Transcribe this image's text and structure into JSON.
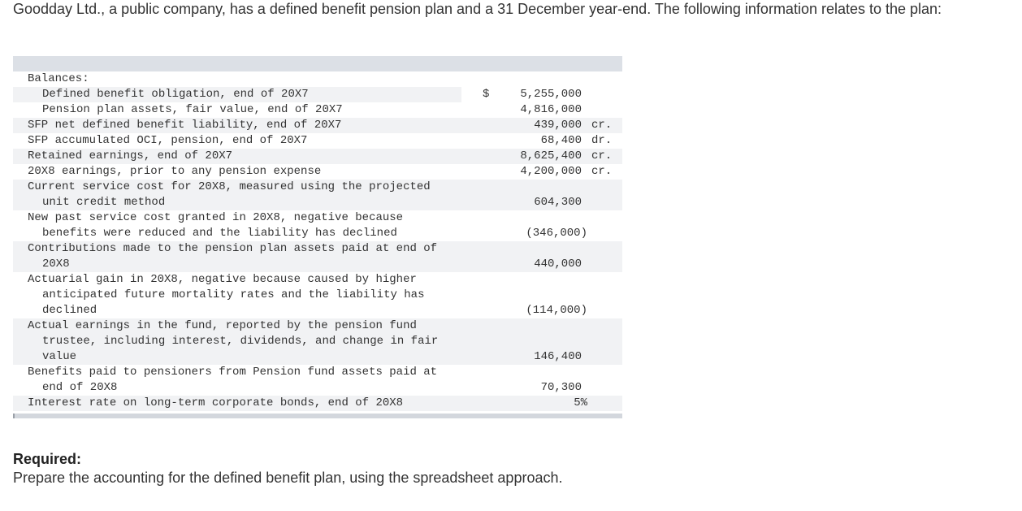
{
  "intro": "Goodday Ltd., a public company, has a defined benefit pension plan and a 31 December year-end. The following information relates to the plan:",
  "table": {
    "balances_heading": "Balances:",
    "currency": "$",
    "rows": [
      {
        "label": "Defined benefit obligation, end of 20X7",
        "value": "5,255,000",
        "note": ""
      },
      {
        "label": "Pension plan assets, fair value, end of 20X7",
        "value": "4,816,000",
        "note": ""
      },
      {
        "label": "SFP net defined benefit liability, end of 20X7",
        "value": "439,000",
        "note": "cr."
      },
      {
        "label": "SFP accumulated OCI, pension, end of 20X7",
        "value": "68,400",
        "note": "dr."
      },
      {
        "label": "Retained earnings, end of 20X7",
        "value": "8,625,400",
        "note": "cr."
      },
      {
        "label": "20X8 earnings, prior to any pension expense",
        "value": "4,200,000",
        "note": "cr."
      },
      {
        "label_lines": [
          "Current service cost for 20X8, measured using the projected",
          "unit credit method"
        ],
        "value": "604,300"
      },
      {
        "label_lines": [
          "New past service cost granted in 20X8, negative because",
          "benefits were reduced and the liability has declined"
        ],
        "value": "(346,000)"
      },
      {
        "label_lines": [
          "Contributions made to the pension plan assets paid at end of",
          "20X8"
        ],
        "value": "440,000"
      },
      {
        "label_lines": [
          "Actuarial gain in 20X8, negative because caused by higher",
          "anticipated future mortality rates and the liability has",
          "declined"
        ],
        "value": "(114,000)"
      },
      {
        "label_lines": [
          "Actual earnings in the fund, reported by the pension fund",
          "trustee, including interest, dividends, and change in fair",
          "value"
        ],
        "value": "146,400"
      },
      {
        "label_lines": [
          "Benefits paid to pensioners from Pension fund assets paid at",
          "end of 20X8"
        ],
        "value": "70,300"
      },
      {
        "label": "Interest rate on long-term corporate bonds, end of 20X8",
        "value": "5%"
      }
    ]
  },
  "required": {
    "heading": "Required:",
    "text": "Prepare the accounting for the defined benefit plan, using the spreadsheet approach."
  }
}
